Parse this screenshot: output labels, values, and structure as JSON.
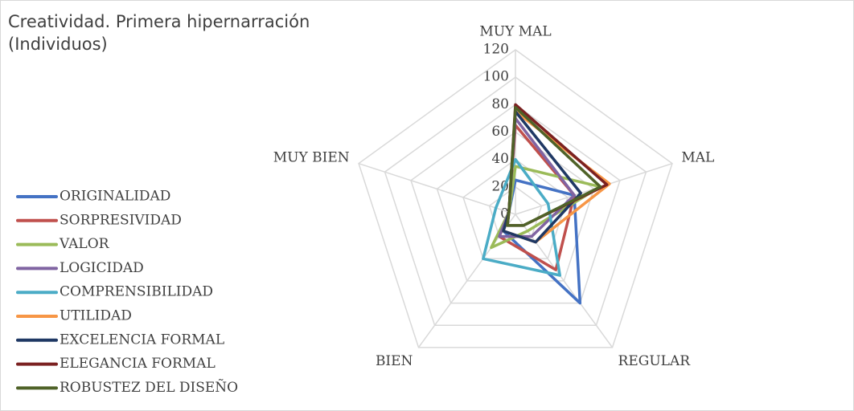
{
  "chart_data": {
    "type": "radar",
    "title": "Creatividad. Primera hipernarración (Individuos)",
    "categories": [
      "MUY MAL",
      "MAL",
      "REGULAR",
      "BIEN",
      "MUY BIEN"
    ],
    "ylim": [
      0,
      120
    ],
    "yticks": [
      0,
      20,
      40,
      60,
      80,
      100,
      120
    ],
    "grid": true,
    "series": [
      {
        "name": "ORIGINALIDAD",
        "color": "#4472c4",
        "values": [
          25,
          45,
          80,
          15,
          5
        ]
      },
      {
        "name": "SORPRESIVIDAD",
        "color": "#c0504d",
        "values": [
          65,
          45,
          50,
          20,
          5
        ]
      },
      {
        "name": "VALOR",
        "color": "#9bbb59",
        "values": [
          35,
          65,
          15,
          30,
          5
        ]
      },
      {
        "name": "LOGICIDAD",
        "color": "#8064a2",
        "values": [
          70,
          45,
          20,
          20,
          5
        ]
      },
      {
        "name": "COMPRENSIBILIDAD",
        "color": "#4bacc6",
        "values": [
          40,
          25,
          55,
          40,
          15
        ]
      },
      {
        "name": "UTILIDAD",
        "color": "#f79646",
        "values": [
          75,
          72,
          25,
          15,
          5
        ]
      },
      {
        "name": "EXCELENCIA FORMAL",
        "color": "#1f3864",
        "values": [
          75,
          50,
          25,
          15,
          5
        ]
      },
      {
        "name": "ELEGANCIA FORMAL",
        "color": "#7b2121",
        "values": [
          80,
          70,
          10,
          10,
          5
        ]
      },
      {
        "name": "ROBUSTEZ DEL DISEÑO",
        "color": "#4f6228",
        "values": [
          78,
          65,
          10,
          10,
          5
        ]
      }
    ]
  }
}
